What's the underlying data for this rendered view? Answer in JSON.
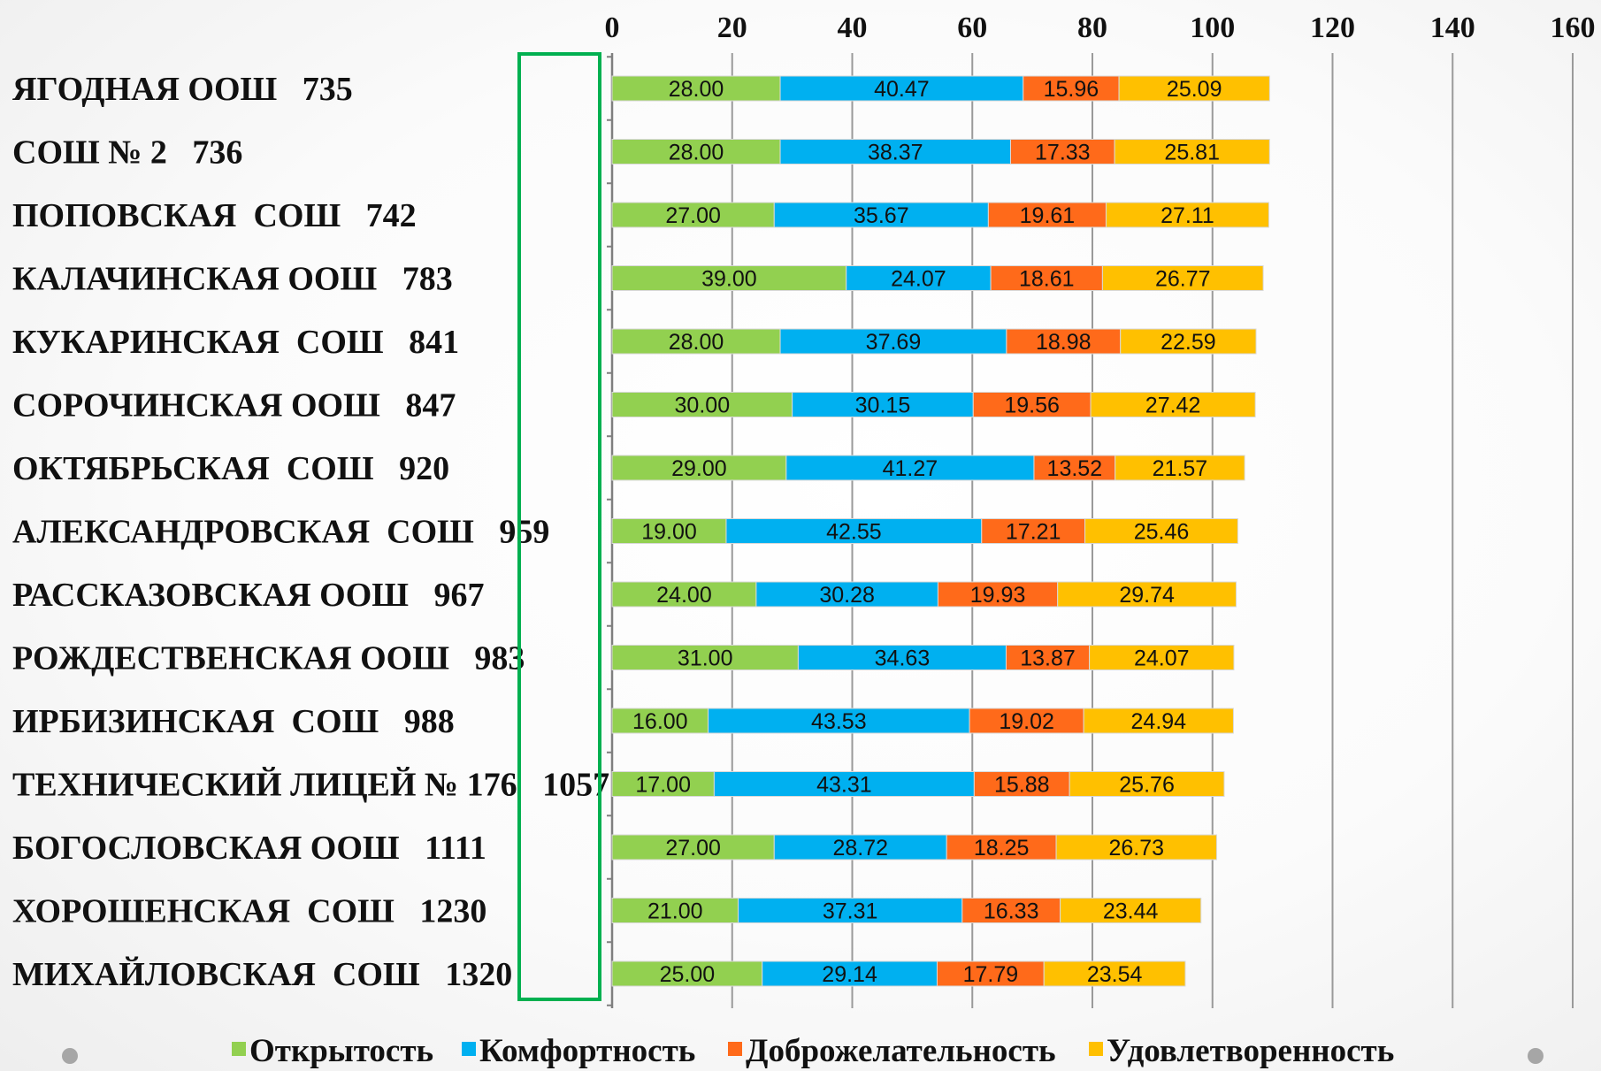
{
  "chart_data": {
    "type": "bar",
    "orientation": "horizontal",
    "stacked": true,
    "title": "",
    "xlabel": "",
    "ylabel": "",
    "xlim": [
      0,
      160
    ],
    "xticks": [
      0,
      20,
      40,
      60,
      80,
      100,
      120,
      140,
      160
    ],
    "x_axis_position": "top",
    "grid": "vertical",
    "legend_position": "bottom",
    "categories": [
      "ЯГОДНАЯ ООШ   735",
      "СОШ № 2   736",
      "ПОПОВСКАЯ  СОШ   742",
      "КАЛАЧИНСКАЯ ООШ   783",
      "КУКАРИНСКАЯ  СОШ   841",
      "СОРОЧИНСКАЯ ООШ   847",
      "ОКТЯБРЬСКАЯ  СОШ   920",
      "АЛЕКСАНДРОВСКАЯ  СОШ   959",
      "РАССКАЗОВСКАЯ ООШ   967",
      "РОЖДЕСТВЕНСКАЯ ООШ   983",
      "ИРБИЗИНСКАЯ  СОШ   988",
      "ТЕХНИЧЕСКИЙ ЛИЦЕЙ № 176   1057",
      "БОГОСЛОВСКАЯ ООШ   1111",
      "ХОРОШЕНСКАЯ  СОШ   1230",
      "МИХАЙЛОВСКАЯ  СОШ   1320"
    ],
    "series": [
      {
        "name": "Открытость",
        "color": "#92d050",
        "values": [
          28.0,
          28.0,
          27.0,
          39.0,
          28.0,
          30.0,
          29.0,
          19.0,
          24.0,
          31.0,
          16.0,
          17.0,
          27.0,
          21.0,
          25.0
        ]
      },
      {
        "name": "Комфортность",
        "color": "#00b0f0",
        "values": [
          40.47,
          38.37,
          35.67,
          24.07,
          37.69,
          30.15,
          41.27,
          42.55,
          30.28,
          34.63,
          43.53,
          43.31,
          28.72,
          37.31,
          29.14
        ]
      },
      {
        "name": "Доброжелательность",
        "color": "#ff6a1a",
        "values": [
          15.96,
          17.33,
          19.61,
          18.61,
          18.98,
          19.56,
          13.52,
          17.21,
          19.93,
          13.87,
          19.02,
          15.88,
          18.25,
          16.33,
          17.79
        ]
      },
      {
        "name": "Удовлетворенность",
        "color": "#ffc000",
        "values": [
          25.09,
          25.81,
          27.11,
          26.77,
          22.59,
          27.42,
          21.57,
          25.46,
          29.74,
          24.07,
          24.94,
          25.76,
          26.73,
          23.44,
          23.54
        ]
      }
    ]
  },
  "decor": {
    "highlight_box_color": "#00b050",
    "slide_dot_color": "#a6a6a6"
  }
}
